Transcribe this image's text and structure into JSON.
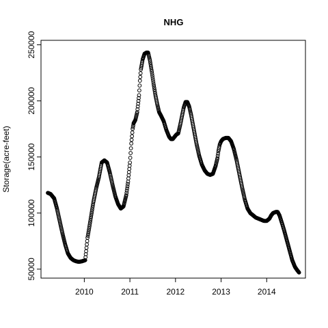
{
  "chart_data": {
    "type": "scatter",
    "title": "NHG",
    "xlabel": "",
    "ylabel": "Storage(acre-feet)",
    "xlim": [
      2009.05,
      2014.85
    ],
    "ylim": [
      42000,
      254000
    ],
    "xticks": [
      2010,
      2011,
      2012,
      2013,
      2014
    ],
    "xtick_labels": [
      "2010",
      "2011",
      "2012",
      "2013",
      "2014"
    ],
    "yticks": [
      50000,
      100000,
      150000,
      200000,
      250000
    ],
    "ytick_labels": [
      "50000",
      "100000",
      "150000",
      "200000",
      "250000"
    ],
    "grid": false,
    "legend": "none",
    "marker": "open-circle",
    "x_unit": "decimal year",
    "series": [
      {
        "x": [
          2009.2,
          2009.26,
          2009.3,
          2009.34,
          2009.4,
          2009.46,
          2009.52,
          2009.58,
          2009.64,
          2009.7,
          2009.76,
          2009.82,
          2009.88,
          2009.95,
          2010.02,
          2010.04,
          2010.07,
          2010.1,
          2010.14,
          2010.2,
          2010.26,
          2010.32,
          2010.38,
          2010.44,
          2010.5,
          2010.56,
          2010.62,
          2010.68,
          2010.74,
          2010.8,
          2010.86,
          2010.92,
          2010.96,
          2011.0,
          2011.03,
          2011.06,
          2011.08,
          2011.12,
          2011.16,
          2011.2,
          2011.22,
          2011.24,
          2011.28,
          2011.32,
          2011.36,
          2011.4,
          2011.44,
          2011.48,
          2011.52,
          2011.56,
          2011.6,
          2011.64,
          2011.68,
          2011.74,
          2011.8,
          2011.86,
          2011.9,
          2011.94,
          2011.98,
          2012.02,
          2012.06,
          2012.1,
          2012.14,
          2012.18,
          2012.22,
          2012.26,
          2012.3,
          2012.34,
          2012.4,
          2012.46,
          2012.52,
          2012.58,
          2012.64,
          2012.7,
          2012.76,
          2012.82,
          2012.88,
          2012.92,
          2012.94,
          2012.97,
          2013.0,
          2013.04,
          2013.1,
          2013.16,
          2013.22,
          2013.28,
          2013.34,
          2013.4,
          2013.46,
          2013.52,
          2013.58,
          2013.64,
          2013.7,
          2013.76,
          2013.82,
          2013.88,
          2013.94,
          2014.0,
          2014.06,
          2014.1,
          2014.14,
          2014.2,
          2014.24,
          2014.28,
          2014.32,
          2014.38,
          2014.44,
          2014.5,
          2014.56,
          2014.62,
          2014.67,
          2014.71
        ],
        "y": [
          118000,
          117000,
          115000,
          113000,
          104000,
          93000,
          82000,
          72000,
          64000,
          60000,
          58000,
          57000,
          56500,
          57000,
          58000,
          66000,
          78000,
          85000,
          95000,
          110000,
          122000,
          132000,
          145000,
          147000,
          145000,
          136000,
          125000,
          115000,
          108000,
          104000,
          106000,
          116000,
          128000,
          145000,
          162000,
          175000,
          180000,
          183000,
          190000,
          205000,
          218000,
          228000,
          237000,
          242000,
          243000,
          243000,
          236000,
          226000,
          215000,
          205000,
          197000,
          190000,
          187000,
          182000,
          174000,
          168000,
          166000,
          166000,
          168000,
          170000,
          171000,
          178000,
          186000,
          194000,
          199000,
          199000,
          195000,
          188000,
          175000,
          162000,
          151000,
          143000,
          138000,
          135000,
          134000,
          135000,
          142000,
          149000,
          155000,
          161000,
          164000,
          166000,
          167000,
          167000,
          164000,
          157000,
          147000,
          135000,
          123000,
          112000,
          104000,
          100000,
          98000,
          96000,
          95000,
          94000,
          93000,
          93000,
          95000,
          98000,
          100000,
          101000,
          101000,
          98000,
          93000,
          85000,
          76000,
          67000,
          58000,
          52000,
          49000,
          47000
        ]
      }
    ]
  }
}
